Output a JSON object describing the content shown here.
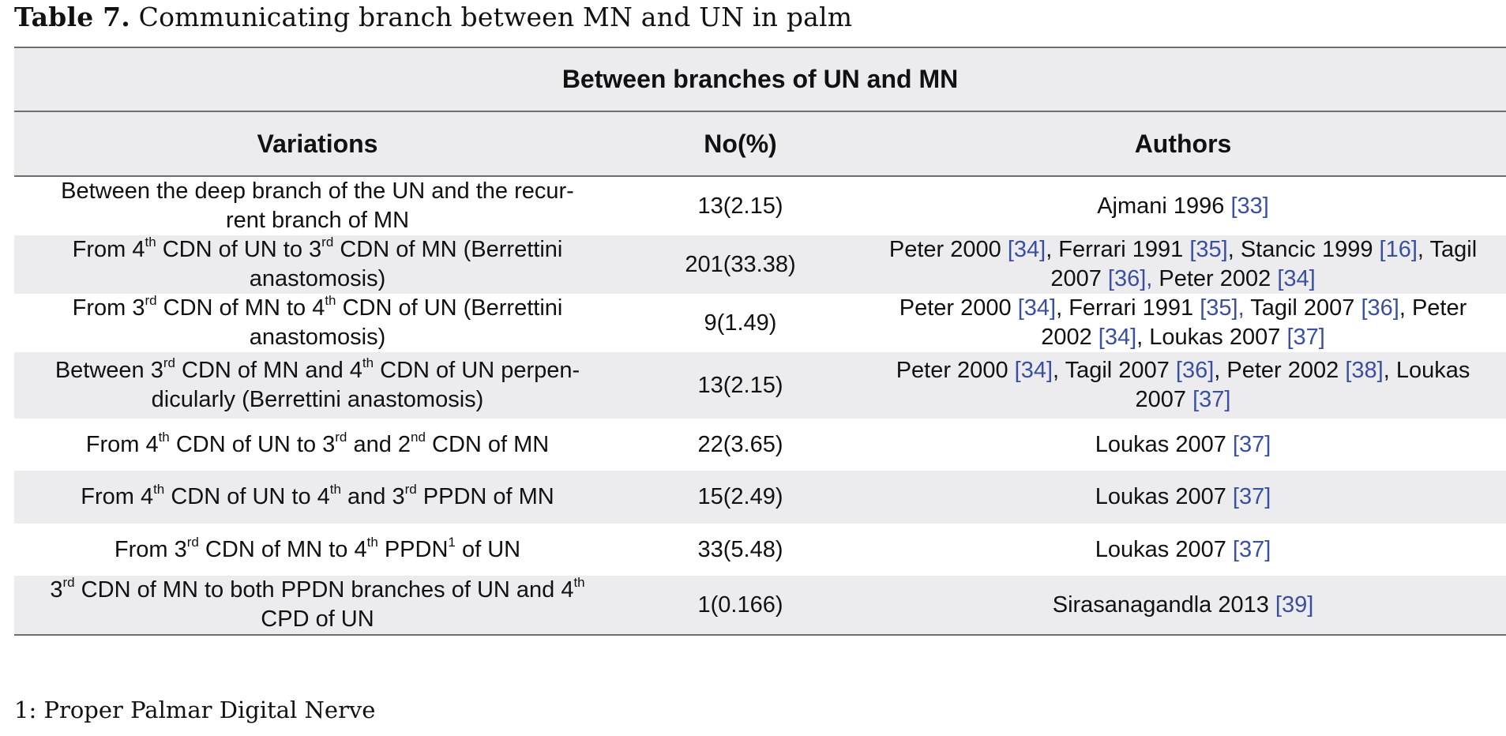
{
  "caption": {
    "label": "Table 7.",
    "text": "Communicating branch between MN and UN in palm"
  },
  "table": {
    "group_header": "Between branches of UN and MN",
    "columns": [
      "Variations",
      "No(%)",
      "Authors"
    ],
    "rows": [
      {
        "variation": [
          {
            "t": "Between the deep branch of the UN and the recur-"
          },
          {
            "br": true
          },
          {
            "t": "rent branch of MN"
          }
        ],
        "count": "13(2.15)",
        "authors": [
          {
            "t": "Ajmani 1996 "
          },
          {
            "ref": "[33]"
          }
        ]
      },
      {
        "variation": [
          {
            "t": "From 4"
          },
          {
            "sup": "th"
          },
          {
            "t": " CDN of UN to 3"
          },
          {
            "sup": "rd"
          },
          {
            "t": " CDN of MN (Berrettini"
          },
          {
            "br": true
          },
          {
            "t": "anastomosis)"
          }
        ],
        "count": "201(33.38)",
        "authors": [
          {
            "t": "Peter 2000 "
          },
          {
            "ref": "[34]"
          },
          {
            "t": ", Ferrari 1991 "
          },
          {
            "ref": "[35]"
          },
          {
            "t": ", Stancic 1999 "
          },
          {
            "ref": "[16]"
          },
          {
            "t": ", Tagil"
          },
          {
            "br": true
          },
          {
            "t": "2007 "
          },
          {
            "ref": "[36],"
          },
          {
            "t": " Peter 2002 "
          },
          {
            "ref": "[34]"
          }
        ]
      },
      {
        "variation": [
          {
            "t": "From 3"
          },
          {
            "sup": "rd"
          },
          {
            "t": " CDN of MN to 4"
          },
          {
            "sup": "th"
          },
          {
            "t": " CDN of UN (Berrettini"
          },
          {
            "br": true
          },
          {
            "t": "anastomosis)"
          }
        ],
        "count": "9(1.49)",
        "authors": [
          {
            "t": "Peter 2000 "
          },
          {
            "ref": "[34]"
          },
          {
            "t": ", Ferrari 1991 "
          },
          {
            "ref": "[35],"
          },
          {
            "t": " Tagil 2007 "
          },
          {
            "ref": "[36]"
          },
          {
            "t": ", Peter"
          },
          {
            "br": true
          },
          {
            "t": "2002 "
          },
          {
            "ref": "[34]"
          },
          {
            "t": ", Loukas 2007 "
          },
          {
            "ref": "[37]"
          }
        ]
      },
      {
        "variation": [
          {
            "t": "Between 3"
          },
          {
            "sup": "rd"
          },
          {
            "t": " CDN of MN and 4"
          },
          {
            "sup": "th"
          },
          {
            "t": " CDN of UN perpen-"
          },
          {
            "br": true
          },
          {
            "t": "dicularly (Berrettini anastomosis)"
          }
        ],
        "count": "13(2.15)",
        "authors": [
          {
            "t": "Peter 2000 "
          },
          {
            "ref": "[34]"
          },
          {
            "t": ", Tagil 2007 "
          },
          {
            "ref": "[36]"
          },
          {
            "t": ", Peter 2002 "
          },
          {
            "ref": "[38]"
          },
          {
            "t": ", Loukas"
          },
          {
            "br": true
          },
          {
            "t": "2007 "
          },
          {
            "ref": "[37]"
          }
        ]
      },
      {
        "variation": [
          {
            "t": "From 4"
          },
          {
            "sup": "th"
          },
          {
            "t": " CDN of UN to 3"
          },
          {
            "sup": "rd"
          },
          {
            "t": " and 2"
          },
          {
            "sup": "nd"
          },
          {
            "t": " CDN of MN"
          }
        ],
        "count": "22(3.65)",
        "authors": [
          {
            "t": "Loukas 2007 "
          },
          {
            "ref": "[37]"
          }
        ]
      },
      {
        "variation": [
          {
            "t": "From 4"
          },
          {
            "sup": "th"
          },
          {
            "t": " CDN of UN to 4"
          },
          {
            "sup": "th"
          },
          {
            "t": " and 3"
          },
          {
            "sup": "rd"
          },
          {
            "t": " PPDN of MN"
          }
        ],
        "count": "15(2.49)",
        "authors": [
          {
            "t": "Loukas 2007 "
          },
          {
            "ref": "[37]"
          }
        ]
      },
      {
        "variation": [
          {
            "t": "From 3"
          },
          {
            "sup": "rd"
          },
          {
            "t": " CDN of MN to 4"
          },
          {
            "sup": "th"
          },
          {
            "t": " PPDN"
          },
          {
            "sup": "1"
          },
          {
            "t": " of UN"
          }
        ],
        "count": "33(5.48)",
        "authors": [
          {
            "t": "Loukas 2007 "
          },
          {
            "ref": "[37]"
          }
        ]
      },
      {
        "variation": [
          {
            "t": "3"
          },
          {
            "sup": "rd"
          },
          {
            "t": " CDN of MN to both PPDN branches of UN and 4"
          },
          {
            "sup": "th"
          },
          {
            "br": true
          },
          {
            "t": "CPD of UN"
          }
        ],
        "count": "1(0.166)",
        "authors": [
          {
            "t": "Sirasanagandla 2013 "
          },
          {
            "ref": "[39]"
          }
        ]
      }
    ]
  },
  "footnote": "1: Proper Palmar Digital Nerve",
  "colors": {
    "header_bg": "#ececee",
    "stripe_bg": "#ececee",
    "rule": "#6e6e6e",
    "reference_link": "#3a4fa0"
  }
}
